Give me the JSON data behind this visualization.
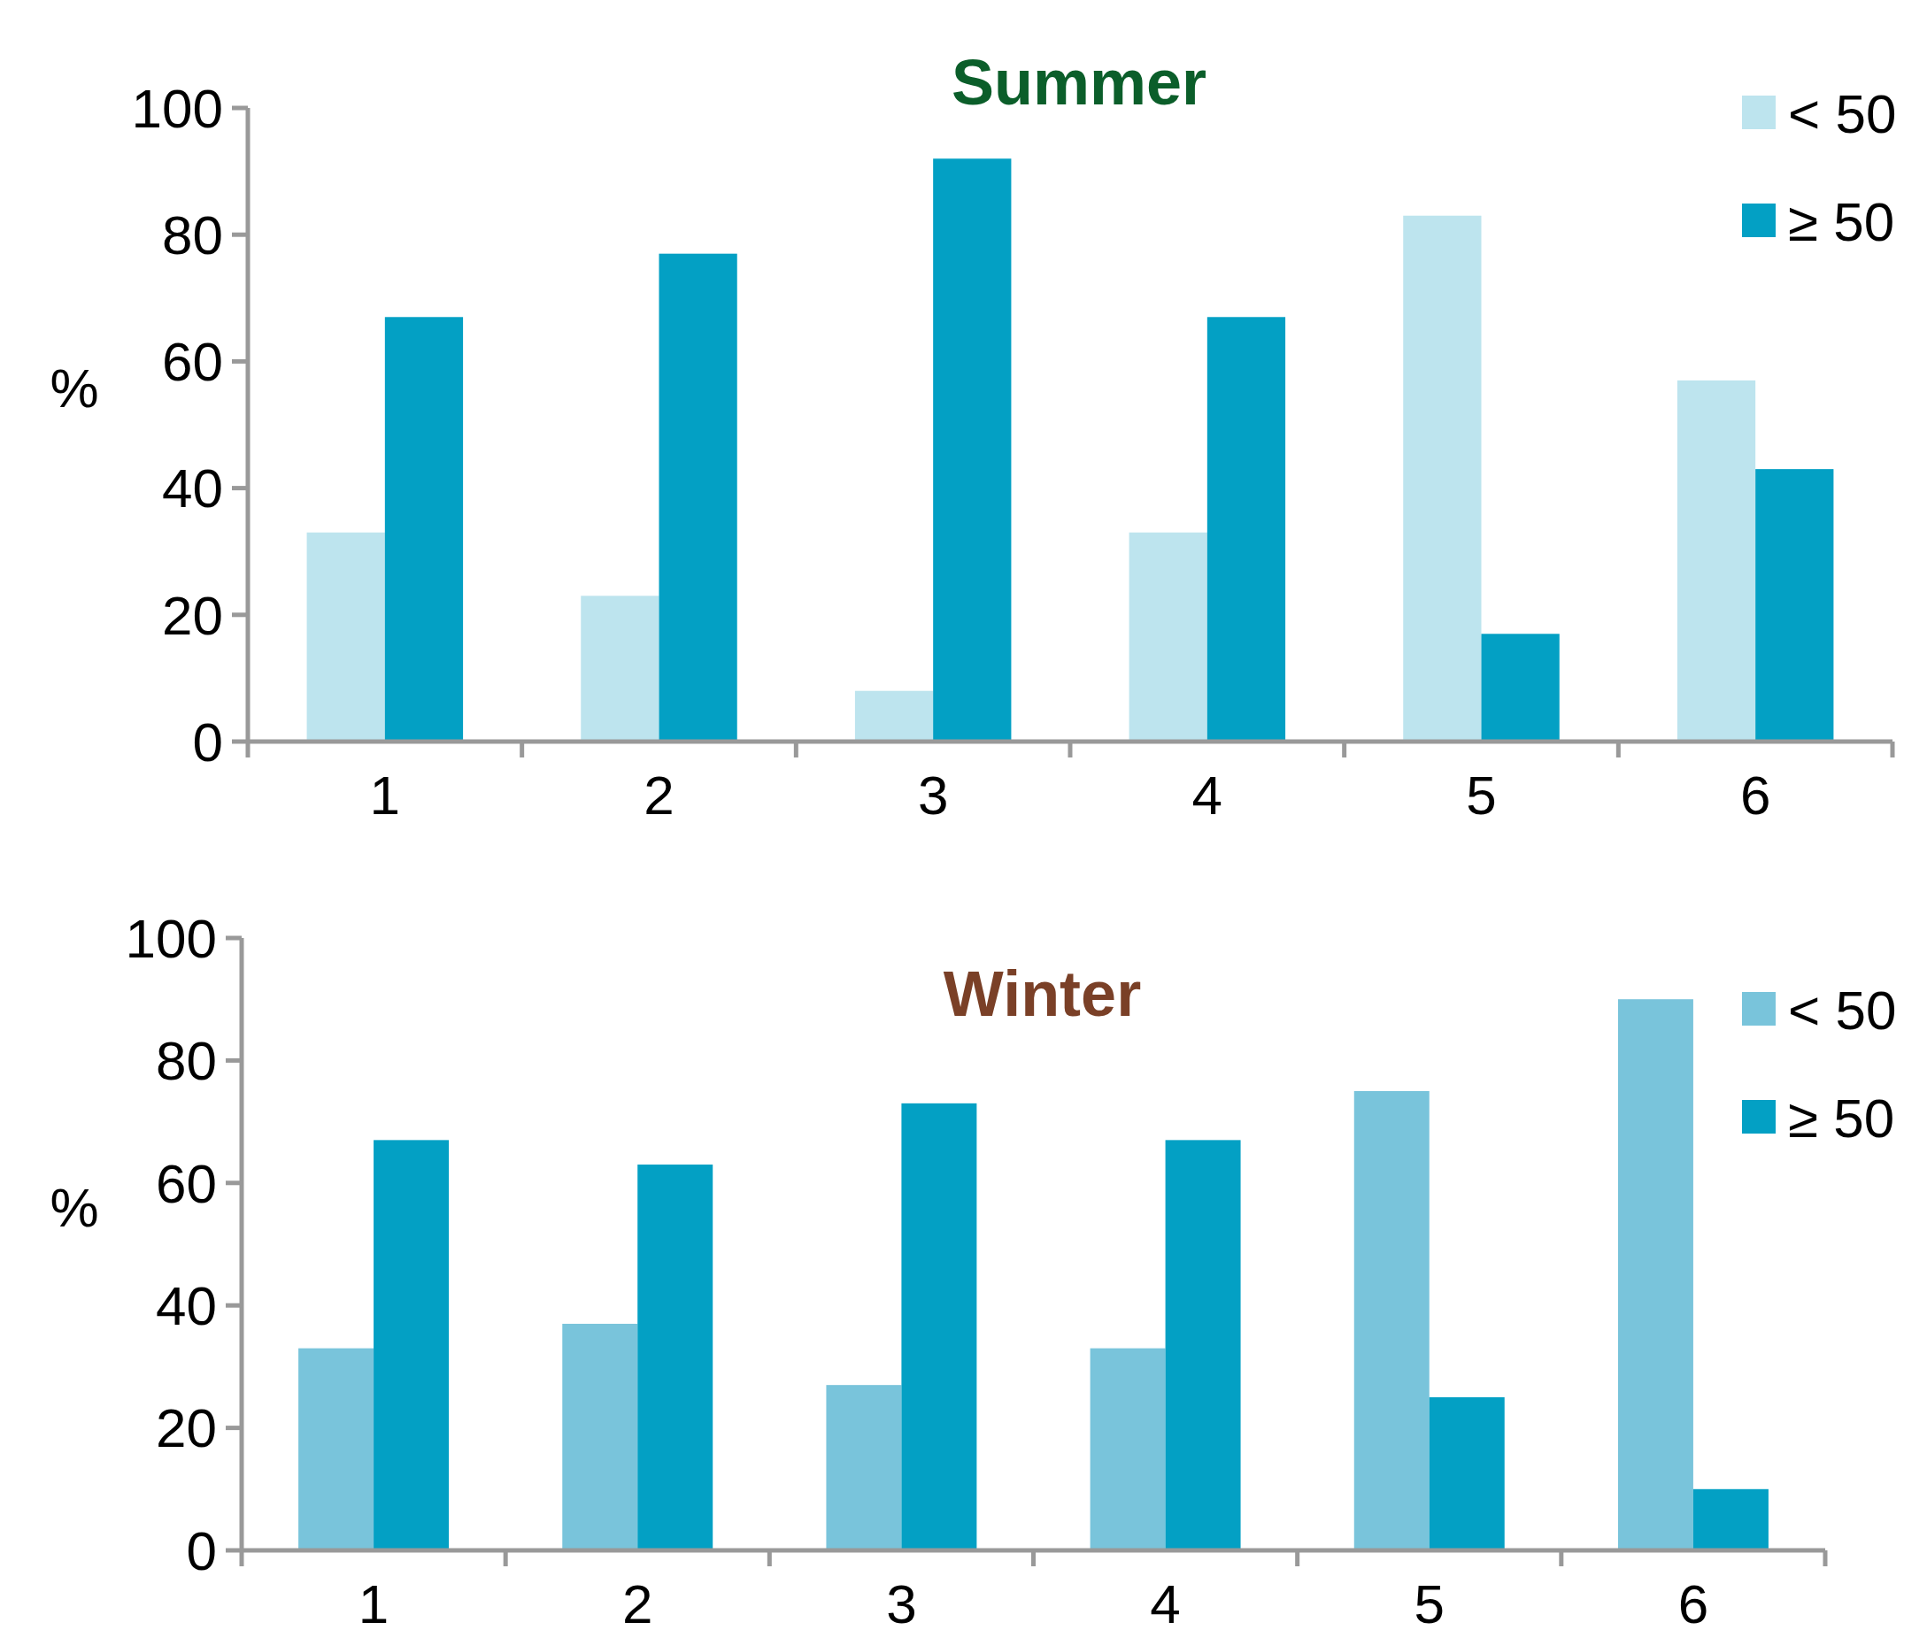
{
  "chart_data": [
    {
      "type": "bar",
      "title": "Summer",
      "ylabel": "%",
      "categories": [
        "1",
        "2",
        "3",
        "4",
        "5",
        "6"
      ],
      "ylim": [
        0,
        100
      ],
      "yticks": [
        0,
        20,
        40,
        60,
        80,
        100
      ],
      "grid": false,
      "legend": "top right",
      "series": [
        {
          "name": "< 50",
          "color": "#bde4ee",
          "values": [
            33,
            23,
            8,
            33,
            83,
            57
          ]
        },
        {
          "name": "≥ 50",
          "color": "#03a0c4",
          "values": [
            67,
            77,
            92,
            67,
            17,
            43
          ]
        }
      ]
    },
    {
      "type": "bar",
      "title": "Winter",
      "ylabel": "%",
      "categories": [
        "1",
        "2",
        "3",
        "4",
        "5",
        "6"
      ],
      "ylim": [
        0,
        100
      ],
      "yticks": [
        0,
        20,
        40,
        60,
        80,
        100
      ],
      "grid": false,
      "legend": "top right",
      "series": [
        {
          "name": "< 50",
          "color": "#79c4db",
          "values": [
            33,
            37,
            27,
            33,
            75,
            90
          ]
        },
        {
          "name": "≥ 50",
          "color": "#03a0c4",
          "values": [
            67,
            63,
            73,
            67,
            25,
            10
          ]
        }
      ]
    }
  ]
}
